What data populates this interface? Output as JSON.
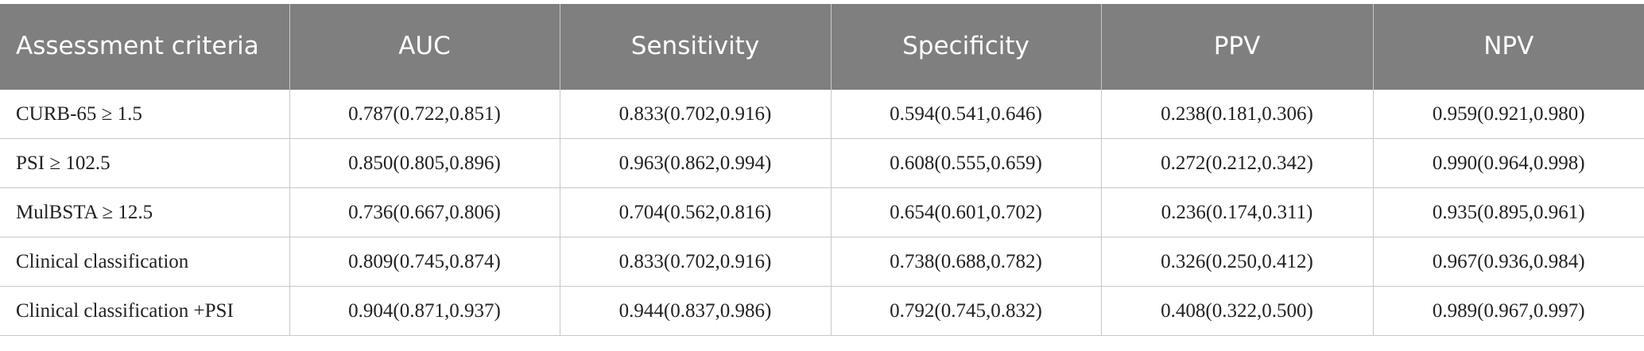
{
  "table": {
    "header": [
      "Assessment criteria",
      "AUC",
      "Sensitivity",
      "Specificity",
      "PPV",
      "NPV"
    ],
    "rows": [
      [
        "CURB-65 ≥ 1.5",
        "0.787(0.722,0.851)",
        "0.833(0.702,0.916)",
        "0.594(0.541,0.646)",
        "0.238(0.181,0.306)",
        "0.959(0.921,0.980)"
      ],
      [
        "PSI ≥ 102.5",
        "0.850(0.805,0.896)",
        "0.963(0.862,0.994)",
        "0.608(0.555,0.659)",
        "0.272(0.212,0.342)",
        "0.990(0.964,0.998)"
      ],
      [
        "MulBSTA ≥ 12.5",
        "0.736(0.667,0.806)",
        "0.704(0.562,0.816)",
        "0.654(0.601,0.702)",
        "0.236(0.174,0.311)",
        "0.935(0.895,0.961)"
      ],
      [
        "Clinical classification",
        "0.809(0.745,0.874)",
        "0.833(0.702,0.916)",
        "0.738(0.688,0.782)",
        "0.326(0.250,0.412)",
        "0.967(0.936,0.984)"
      ],
      [
        "Clinical classification +PSI",
        "0.904(0.871,0.937)",
        "0.944(0.837,0.986)",
        "0.792(0.745,0.832)",
        "0.408(0.322,0.500)",
        "0.989(0.967,0.997)"
      ]
    ]
  }
}
